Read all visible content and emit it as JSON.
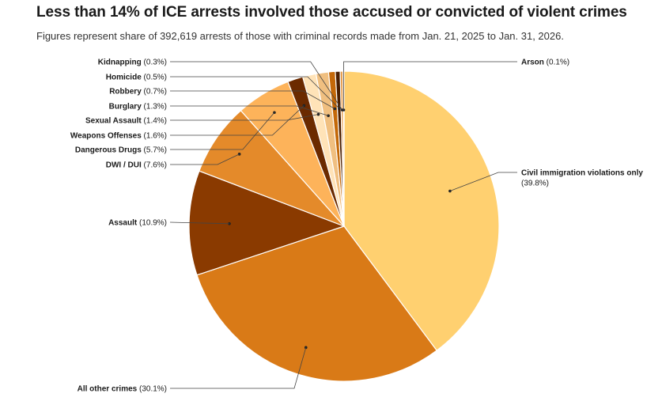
{
  "title": "Less than 14% of ICE arrests involved those accused or convicted of violent crimes",
  "subtitle": "Figures represent share of 392,619 arrests of those with criminal records made from Jan. 21, 2025 to Jan. 31, 2026.",
  "chart_data": {
    "type": "pie",
    "start_angle_deg": 0,
    "direction": "clockwise",
    "slices": [
      {
        "label": "Civil immigration violations only",
        "value_text": "(39.8%)",
        "value": 39.8,
        "color": "#FFD070"
      },
      {
        "label": "All other crimes",
        "value_text": "(30.1%)",
        "value": 30.1,
        "color": "#D97A17"
      },
      {
        "label": "Assault",
        "value_text": "(10.9%)",
        "value": 10.9,
        "color": "#8A3A00"
      },
      {
        "label": "DWI / DUI",
        "value_text": "(7.6%)",
        "value": 7.6,
        "color": "#E48A2A"
      },
      {
        "label": "Dangerous Drugs",
        "value_text": "(5.7%)",
        "value": 5.7,
        "color": "#FDB35A"
      },
      {
        "label": "Weapons Offenses",
        "value_text": "(1.6%)",
        "value": 1.6,
        "color": "#6B2A00"
      },
      {
        "label": "Sexual Assault",
        "value_text": "(1.4%)",
        "value": 1.4,
        "color": "#FFE3B8"
      },
      {
        "label": "Burglary",
        "value_text": "(1.3%)",
        "value": 1.3,
        "color": "#F0BF80"
      },
      {
        "label": "Robbery",
        "value_text": "(0.7%)",
        "value": 0.7,
        "color": "#C46808"
      },
      {
        "label": "Homicide",
        "value_text": "(0.5%)",
        "value": 0.5,
        "color": "#4A1E00"
      },
      {
        "label": "Kidnapping",
        "value_text": "(0.3%)",
        "value": 0.3,
        "color": "#E8A050"
      },
      {
        "label": "Arson",
        "value_text": "(0.1%)",
        "value": 0.1,
        "color": "#2E1400"
      }
    ]
  }
}
